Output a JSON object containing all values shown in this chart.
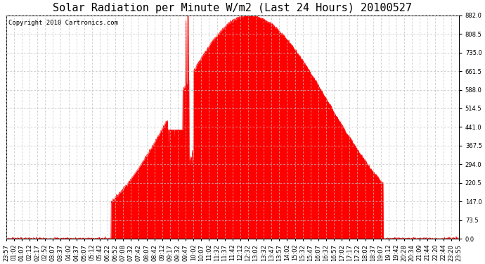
{
  "title": "Solar Radiation per Minute W/m2 (Last 24 Hours) 20100527",
  "copyright_text": "Copyright 2010 Cartronics.com",
  "background_color": "#ffffff",
  "plot_bg_color": "#ffffff",
  "fill_color": "#ff0000",
  "line_color": "#ff0000",
  "dashed_line_color": "#ff0000",
  "grid_color": "#c0c0c0",
  "grid_style": "--",
  "ymin": 0.0,
  "ymax": 882.0,
  "yticks": [
    0.0,
    73.5,
    147.0,
    220.5,
    294.0,
    367.5,
    441.0,
    514.5,
    588.0,
    661.5,
    735.0,
    808.5,
    882.0
  ],
  "x_labels": [
    "23:57",
    "01:02",
    "01:07",
    "02:12",
    "02:17",
    "02:52",
    "03:07",
    "03:37",
    "04:02",
    "04:37",
    "05:07",
    "05:12",
    "05:42",
    "06:22",
    "06:52",
    "07:08",
    "07:32",
    "07:42",
    "08:07",
    "08:42",
    "09:12",
    "09:17",
    "09:32",
    "09:47",
    "10:02",
    "10:07",
    "11:02",
    "11:32",
    "11:37",
    "11:42",
    "12:12",
    "12:32",
    "13:02",
    "13:32",
    "13:47",
    "13:57",
    "14:02",
    "15:02",
    "15:32",
    "15:47",
    "16:07",
    "16:32",
    "16:57",
    "17:02",
    "17:17",
    "17:22",
    "18:02",
    "18:37",
    "19:07",
    "19:12",
    "19:42",
    "20:28",
    "20:34",
    "21:09",
    "21:44",
    "22:20",
    "22:44",
    "23:20",
    "23:55"
  ],
  "title_fontsize": 11,
  "copyright_fontsize": 6.5,
  "tick_fontsize": 6,
  "figwidth": 6.9,
  "figheight": 3.75,
  "dpi": 100
}
